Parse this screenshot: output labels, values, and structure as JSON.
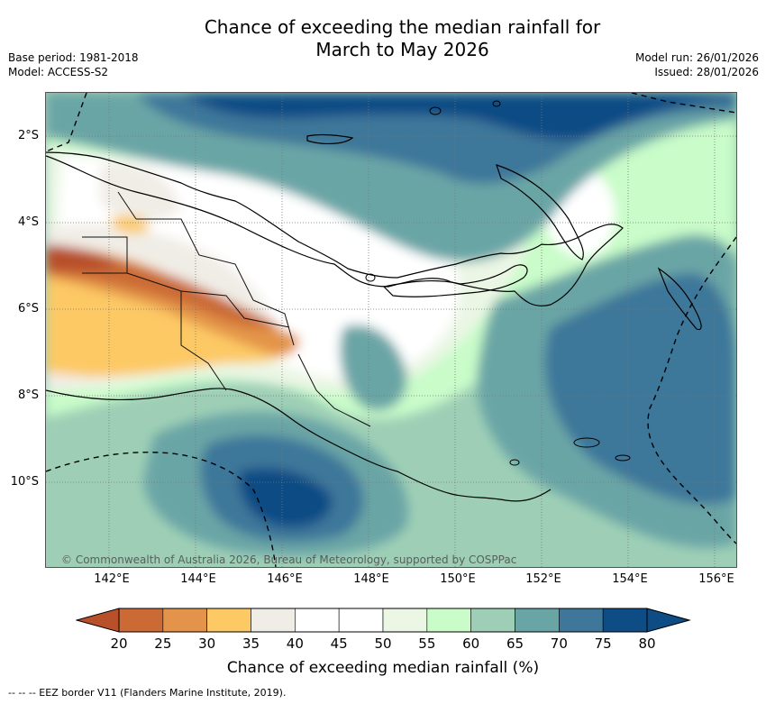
{
  "header": {
    "title_line1": "Chance of exceeding the median rainfall for",
    "title_line2": "March to May 2026",
    "base_period": "Base period: 1981-2018",
    "model": "Model: ACCESS-S2",
    "model_run": "Model run: 26/01/2026",
    "issued": "Issued: 28/01/2026"
  },
  "axes": {
    "lat_labels": [
      "2°S",
      "4°S",
      "6°S",
      "8°S",
      "10°S"
    ],
    "lon_labels": [
      "142°E",
      "144°E",
      "146°E",
      "148°E",
      "150°E",
      "152°E",
      "154°E",
      "156°E"
    ]
  },
  "map": {
    "copyright": "© Commonwealth of Australia 2026, Bureau of Meteorology, supported by COSPPac"
  },
  "colorbar": {
    "ticks": [
      "20",
      "25",
      "30",
      "35",
      "40",
      "45",
      "50",
      "55",
      "60",
      "65",
      "70",
      "75",
      "80"
    ],
    "colors": [
      "#b8502a",
      "#cb6a35",
      "#e3944a",
      "#fdc965",
      "#f0ede6",
      "#ffffff",
      "#ffffff",
      "#ebf6e5",
      "#c9fcc9",
      "#9ecfb6",
      "#6aa5a6",
      "#3e779a",
      "#0e4c85"
    ],
    "label": "Chance of exceeding median rainfall (%)"
  },
  "footnote": "--  --  -- EEZ border V11 (Flanders Marine Institute, 2019)."
}
